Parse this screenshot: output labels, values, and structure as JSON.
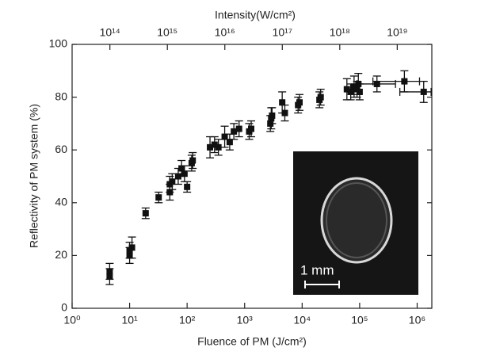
{
  "chart_data": {
    "type": "scatter",
    "x_label": "Fluence of PM (J/cm²)",
    "y_label": "Reflectivity of PM system (%)",
    "x2_label": "Intensity(W/cm²)",
    "log_x": true,
    "log_x2": true,
    "xlim": [
      1,
      1800000
    ],
    "xticks": [
      {
        "value": 1,
        "label": "10⁰"
      },
      {
        "value": 10,
        "label": "10¹"
      },
      {
        "value": 100,
        "label": "10²"
      },
      {
        "value": 1000,
        "label": "10³"
      },
      {
        "value": 10000,
        "label": "10⁴"
      },
      {
        "value": 100000,
        "label": "10⁵"
      },
      {
        "value": 1000000,
        "label": "10⁶"
      }
    ],
    "x2lim": [
      22000000000000,
      40000000000000000000
    ],
    "x2ticks": [
      {
        "value": 100000000000000.0,
        "label": "10¹⁴"
      },
      {
        "value": 1000000000000000.0,
        "label": "10¹⁵"
      },
      {
        "value": 1e+16,
        "label": "10¹⁶"
      },
      {
        "value": 1e+17,
        "label": "10¹⁷"
      },
      {
        "value": 1e+18,
        "label": "10¹⁸"
      },
      {
        "value": 1e+19,
        "label": "10¹⁹"
      }
    ],
    "ylim": [
      0,
      100
    ],
    "yticks": [
      0,
      20,
      40,
      60,
      80,
      100
    ],
    "color": "#111111",
    "x": [
      4.5,
      4.5,
      10,
      11,
      10,
      19,
      32,
      50,
      50,
      55,
      70,
      80,
      90,
      100,
      120,
      125,
      250,
      300,
      350,
      450,
      550,
      650,
      800,
      1200,
      1300,
      2800,
      2900,
      3000,
      4500,
      5000,
      8500,
      9000,
      20000,
      21000,
      60000,
      70000,
      80000,
      90000,
      95000,
      100000,
      200000,
      600000,
      1300000
    ],
    "values": [
      14,
      12,
      20,
      23,
      22,
      36,
      42,
      44,
      47,
      48,
      50,
      53,
      51,
      46,
      55,
      56,
      61,
      62,
      61,
      65,
      63,
      67,
      68,
      67,
      68,
      70,
      72,
      73,
      78,
      74,
      77,
      78,
      79,
      80,
      83,
      82,
      84,
      83,
      85,
      82,
      85,
      86,
      82
    ],
    "yerr": [
      3,
      3,
      3,
      4,
      3,
      2,
      2,
      3,
      3,
      3,
      3,
      3,
      3,
      2,
      3,
      3,
      4,
      3,
      3,
      4,
      3,
      3,
      3,
      3,
      3,
      3,
      4,
      3,
      4,
      3,
      3,
      3,
      3,
      3,
      4,
      3,
      4,
      3,
      4,
      3,
      3,
      4,
      4
    ],
    "x_low": [
      null,
      null,
      null,
      null,
      null,
      null,
      null,
      null,
      null,
      null,
      null,
      null,
      null,
      null,
      null,
      null,
      null,
      null,
      null,
      null,
      null,
      null,
      null,
      null,
      null,
      null,
      null,
      null,
      null,
      null,
      null,
      null,
      null,
      null,
      null,
      null,
      null,
      null,
      null,
      null,
      90000,
      170000,
      500000
    ],
    "x_high": [
      null,
      null,
      null,
      null,
      null,
      null,
      null,
      null,
      null,
      null,
      null,
      null,
      null,
      null,
      null,
      null,
      null,
      null,
      null,
      null,
      null,
      null,
      null,
      null,
      null,
      null,
      null,
      null,
      null,
      null,
      null,
      null,
      null,
      null,
      null,
      null,
      null,
      null,
      null,
      null,
      420000,
      1100000,
      1750000
    ],
    "inset": {
      "scale_label": "1 mm"
    }
  }
}
